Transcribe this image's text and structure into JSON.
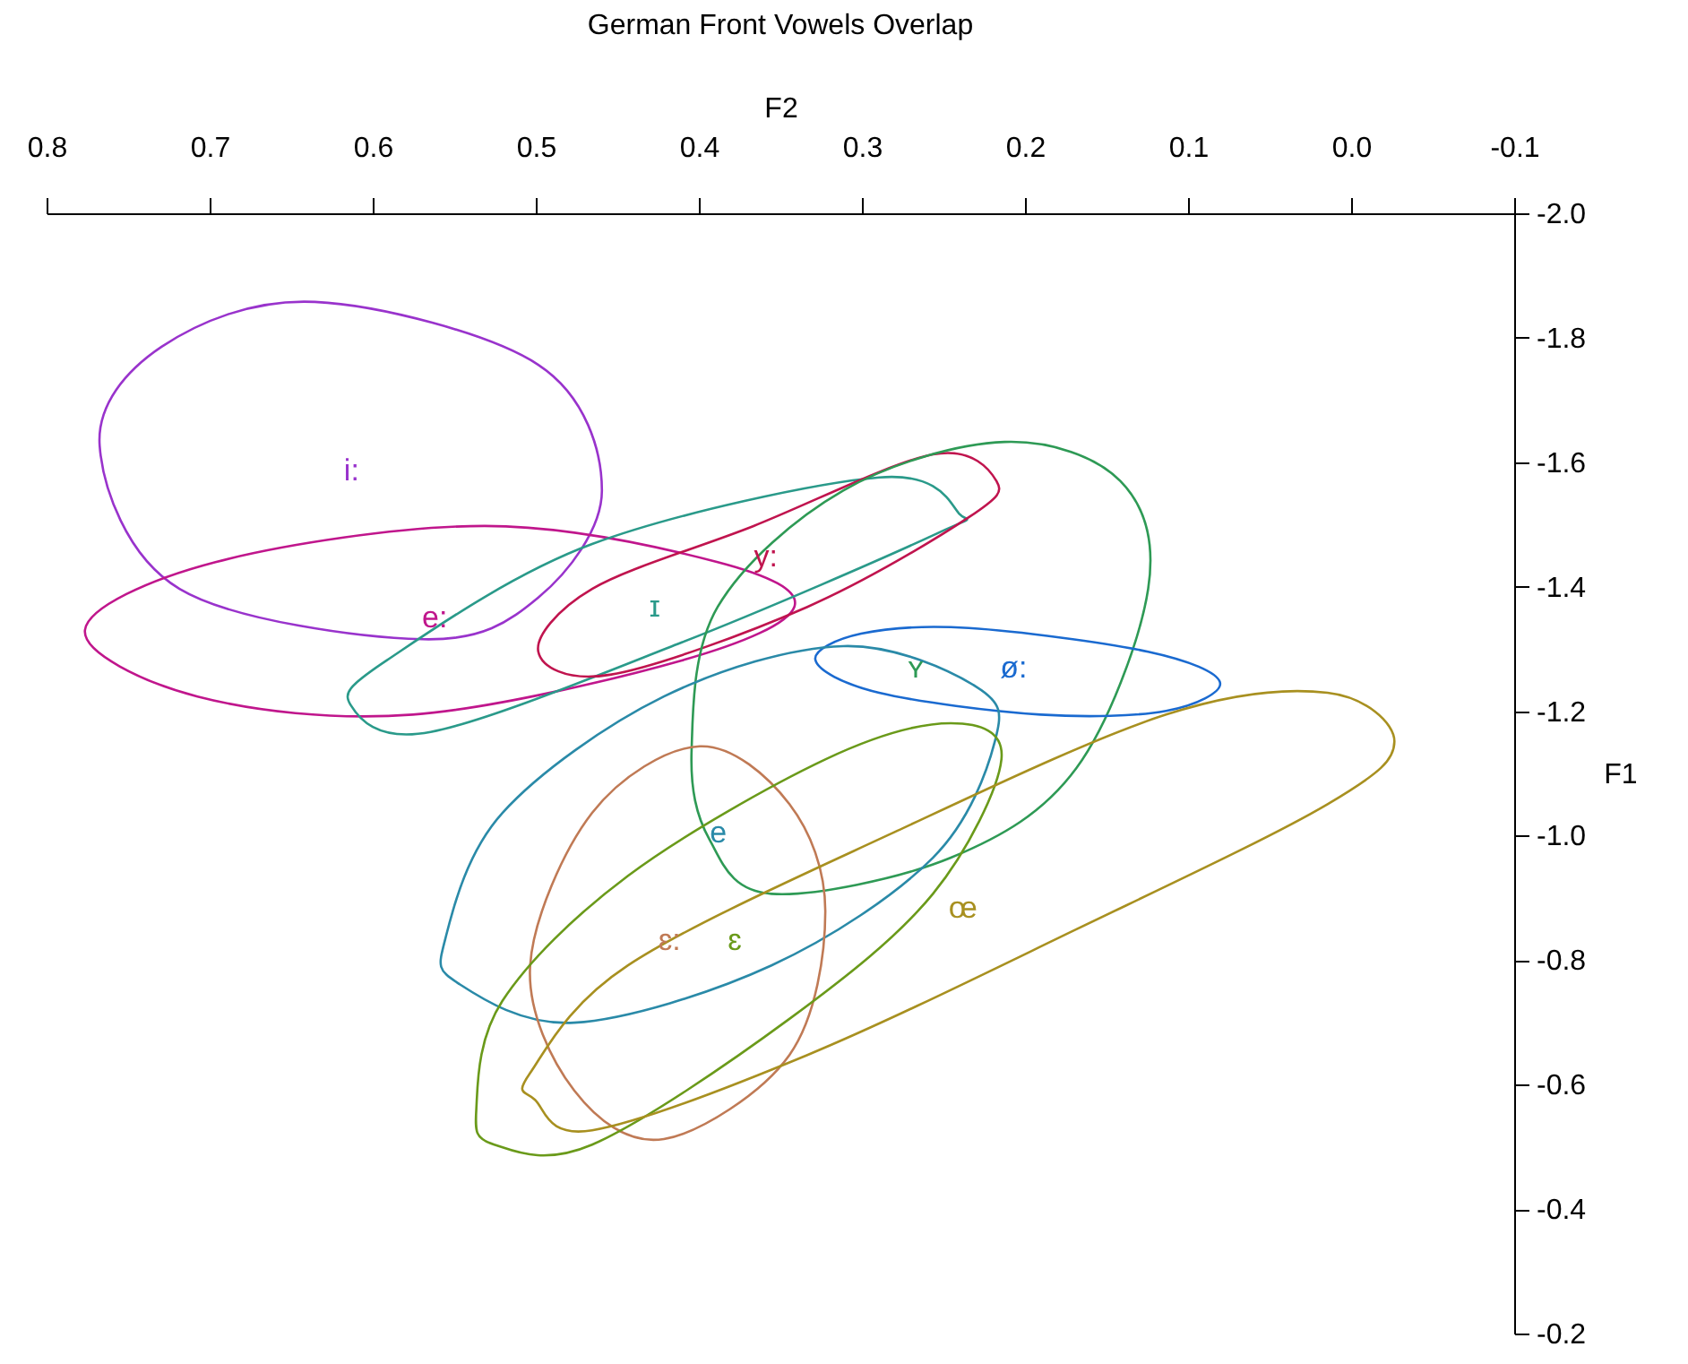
{
  "chart_data": {
    "type": "scatter",
    "title": "German Front Vowels Overlap",
    "xlabel": "F2",
    "ylabel": "F1",
    "xlim": [
      0.8,
      -0.1
    ],
    "xticks": [
      0.8,
      0.7,
      0.6,
      0.5,
      0.4,
      0.3,
      0.2,
      0.1,
      {
        "value": 0,
        "label": "0.0"
      },
      -0.1
    ],
    "ylim": [
      -0.2,
      -2.0
    ],
    "yticks": [
      {
        "value": -2,
        "label": "-2.0"
      },
      -1.8,
      -1.6,
      -1.4,
      -1.2,
      {
        "value": -1,
        "label": "-1.0"
      },
      -0.8,
      -0.6,
      -0.4,
      -0.2
    ],
    "grid": false,
    "annotations": [
      "i:",
      "e:",
      "ɪ",
      "y:",
      "ʏ",
      "ø:",
      "e",
      "ɛ:",
      "ɛ",
      "œ"
    ]
  }
}
